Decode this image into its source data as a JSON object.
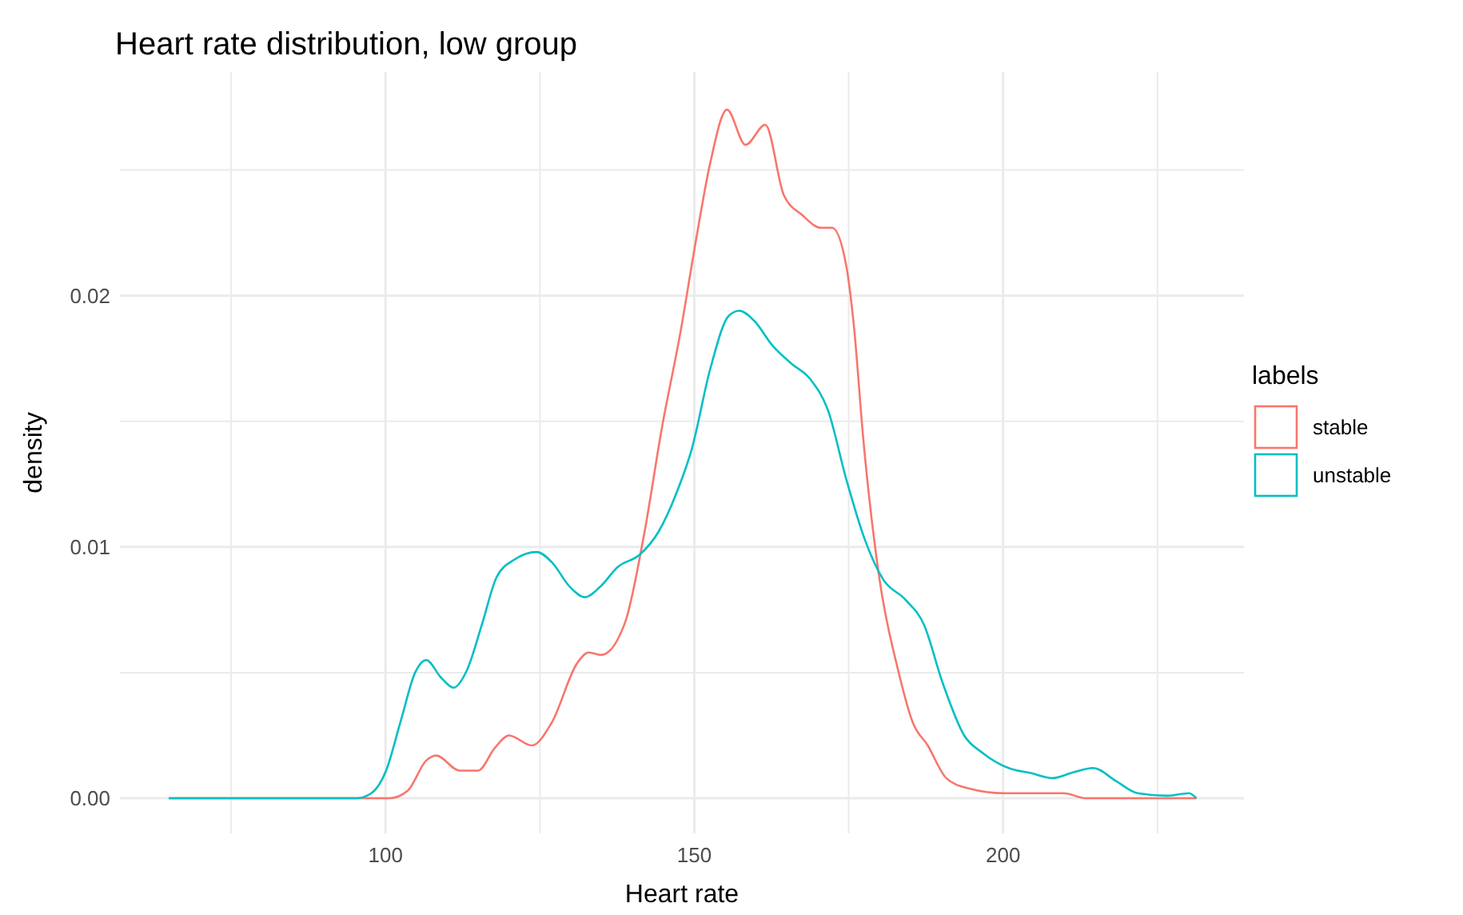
{
  "chart_data": {
    "type": "line",
    "title": "Heart rate distribution, low group",
    "xlabel": "Heart rate",
    "ylabel": "density",
    "legend_title": "labels",
    "legend": "right",
    "grid": true,
    "xlim": [
      57,
      239
    ],
    "ylim": [
      -0.0014,
      0.0289
    ],
    "xticks": [
      {
        "value": 75,
        "label": null
      },
      100,
      {
        "value": 125,
        "label": null
      },
      150,
      {
        "value": 175,
        "label": null
      },
      200,
      {
        "value": 225,
        "label": null
      }
    ],
    "yticks": [
      {
        "value": 0,
        "label": "0.00"
      },
      {
        "value": 0.005,
        "label": null
      },
      {
        "value": 0.01,
        "label": "0.01"
      },
      {
        "value": 0.015,
        "label": null
      },
      {
        "value": 0.02,
        "label": "0.02"
      },
      {
        "value": 0.025,
        "label": null
      }
    ],
    "series": [
      {
        "name": "stable",
        "color": "#f8766d",
        "x": [
          64.9,
          95.3,
          100.7,
          103.6,
          106.6,
          108.2,
          112,
          115,
          117.7,
          120,
          123.7,
          126.9,
          131.1,
          132.9,
          134.9,
          138.8,
          141.8,
          144.8,
          147.8,
          150.2,
          152.6,
          155.3,
          158.3,
          161.5,
          164.5,
          167.5,
          170.5,
          172.3,
          174.6,
          175.8,
          177.4,
          180,
          183,
          185.4,
          187.8,
          190.8,
          194.3,
          200.3,
          206.3,
          209.8,
          213.4,
          231.3
        ],
        "values": [
          0,
          0,
          0,
          0.0003,
          0.0015,
          0.0017,
          0.0011,
          0.0011,
          0.002,
          0.0025,
          0.0021,
          0.003,
          0.0054,
          0.0058,
          0.0057,
          0.007,
          0.0104,
          0.0148,
          0.0186,
          0.0221,
          0.0253,
          0.0274,
          0.026,
          0.0268,
          0.024,
          0.0232,
          0.0227,
          0.0227,
          0.0212,
          0.0189,
          0.0142,
          0.0087,
          0.0051,
          0.003,
          0.0021,
          0.0008,
          0.0004,
          0.0002,
          0.0002,
          0.0002,
          0,
          0
        ]
      },
      {
        "name": "unstable",
        "color": "#00bfc4",
        "x": [
          64.9,
          95.3,
          97.7,
          100.1,
          102.5,
          104.8,
          106.6,
          109,
          111,
          113.2,
          115.6,
          118,
          120.9,
          124.5,
          126.9,
          129.9,
          132.3,
          134.7,
          137.6,
          141.2,
          144.2,
          147.2,
          149.6,
          152.6,
          155.6,
          157.3,
          159.7,
          162.7,
          165.7,
          168.7,
          171.7,
          174.6,
          177.6,
          180.6,
          184.2,
          187.2,
          190.2,
          193.7,
          196.7,
          200.9,
          204.5,
          208.1,
          211,
          214.6,
          218.2,
          221.8,
          226.6,
          230.1,
          231.3
        ],
        "values": [
          0,
          0,
          0.0002,
          0.0011,
          0.0031,
          0.005,
          0.0055,
          0.0048,
          0.0044,
          0.0051,
          0.0069,
          0.0088,
          0.0095,
          0.0098,
          0.0094,
          0.0084,
          0.008,
          0.0084,
          0.0092,
          0.0097,
          0.0106,
          0.0122,
          0.0139,
          0.0171,
          0.0192,
          0.0194,
          0.019,
          0.018,
          0.0173,
          0.0167,
          0.0154,
          0.0127,
          0.0103,
          0.0087,
          0.0079,
          0.0069,
          0.0046,
          0.0025,
          0.0018,
          0.0012,
          0.001,
          0.0008,
          0.001,
          0.0012,
          0.0007,
          0.0002,
          0.0001,
          0.0002,
          0
        ]
      }
    ]
  }
}
